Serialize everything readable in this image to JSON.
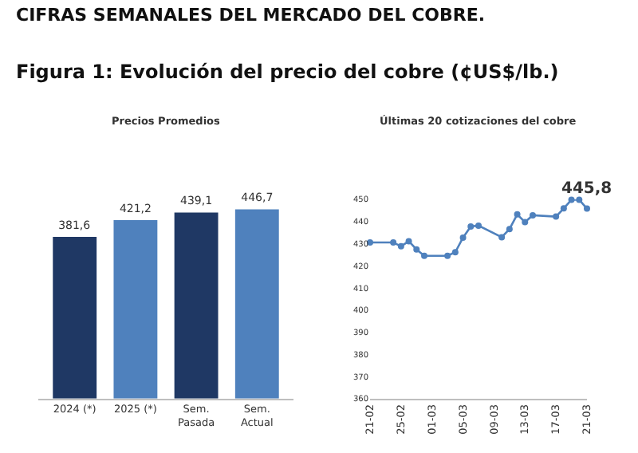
{
  "chart_data": [
    {
      "type": "bar",
      "title": "Precios Promedios",
      "annotations": [
        "CIFRAS SEMANALES DEL MERCADO DEL COBRE.",
        "Figura 1: Evolución del precio del cobre (¢US$/lb.)"
      ],
      "categories": [
        "2024 (*)",
        "2025 (*)",
        "Sem. Pasada",
        "Sem. Actual"
      ],
      "values": [
        381.6,
        421.2,
        439.1,
        446.7
      ],
      "colors": [
        "#1f3864",
        "#4f81bd",
        "#1f3864",
        "#4f81bd"
      ],
      "value_labels": [
        "381,6",
        "421,2",
        "439,1",
        "446,7"
      ],
      "tick_labels": "x"
    },
    {
      "type": "line",
      "title": "Últimas 20 cotizaciones del cobre",
      "annotations": [
        {
          "text": "445,8",
          "x": "2025-03-21",
          "y": 445.8
        }
      ],
      "x": [
        "2025-02-21",
        "2025-02-24",
        "2025-02-25",
        "2025-02-26",
        "2025-02-27",
        "2025-02-28",
        "2025-03-03",
        "2025-03-04",
        "2025-03-05",
        "2025-03-06",
        "2025-03-07",
        "2025-03-10",
        "2025-03-11",
        "2025-03-12",
        "2025-03-13",
        "2025-03-14",
        "2025-03-17",
        "2025-03-18",
        "2025-03-19",
        "2025-03-20",
        "2025-03-21"
      ],
      "series": [
        {
          "color": "#4f81bd",
          "values": [
            430.5,
            430.5,
            428.8,
            431.1,
            427.4,
            424.5,
            424.5,
            426.1,
            432.7,
            437.7,
            438.1,
            432.9,
            436.6,
            443.2,
            439.7,
            442.8,
            442.2,
            445.9,
            449.8,
            449.8,
            445.8
          ]
        }
      ],
      "xlim": [
        "2025-02-21",
        "2025-03-21"
      ],
      "xticks": [
        {
          "value": "2025-02-21",
          "label": "21-02"
        },
        {
          "value": "2025-02-25",
          "label": "25-02"
        },
        {
          "value": "2025-03-01",
          "label": "01-03"
        },
        {
          "value": "2025-03-05",
          "label": "05-03"
        },
        {
          "value": "2025-03-09",
          "label": "09-03"
        },
        {
          "value": "2025-03-13",
          "label": "13-03"
        },
        {
          "value": "2025-03-17",
          "label": "17-03"
        },
        {
          "value": "2025-03-21",
          "label": "21-03"
        }
      ],
      "ylim": [
        360,
        450
      ],
      "yticks": [
        360,
        370,
        380,
        390,
        400,
        410,
        420,
        430,
        440,
        450
      ],
      "marker": "circle",
      "line_style": "solid"
    }
  ]
}
